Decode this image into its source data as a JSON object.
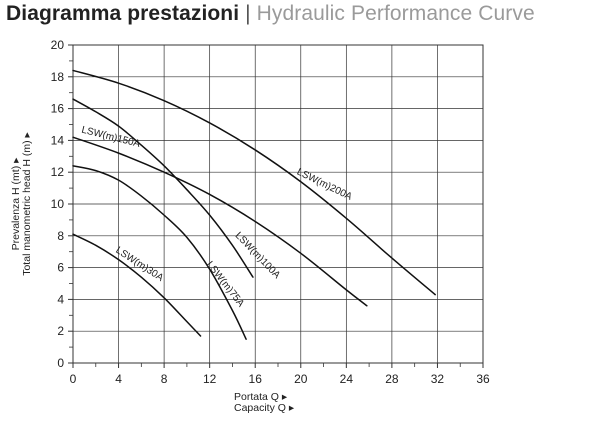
{
  "header": {
    "title_main": "Diagramma prestazioni",
    "title_separator": " | ",
    "title_sub": "Hydraulic Performance Curve"
  },
  "chart_data": {
    "type": "line",
    "title": "Diagramma prestazioni | Hydraulic Performance Curve",
    "xlabel_lines": [
      "Portata Q ▸",
      "Capacity Q ▸"
    ],
    "ylabel_lines": [
      "Prevalenza H (mt) ▸",
      "Total manometric head H (m) ▸"
    ],
    "xlim": [
      0,
      36
    ],
    "ylim": [
      0,
      20
    ],
    "x_ticks": [
      0,
      4,
      8,
      12,
      16,
      20,
      24,
      28,
      32,
      36
    ],
    "y_ticks": [
      0,
      2,
      4,
      6,
      8,
      10,
      12,
      14,
      16,
      18,
      20
    ],
    "grid": true,
    "line_color": "#111111",
    "grid_color": "#333333",
    "series": [
      {
        "name": "LSW(m)30A",
        "x": [
          0,
          2,
          4,
          6,
          8,
          10,
          11.2
        ],
        "y": [
          8.1,
          7.4,
          6.5,
          5.4,
          4.1,
          2.6,
          1.7
        ]
      },
      {
        "name": "LSW(m)75A",
        "x": [
          0,
          2,
          4,
          6,
          8,
          10,
          12,
          14,
          15.2
        ],
        "y": [
          12.4,
          12.1,
          11.5,
          10.5,
          9.3,
          7.9,
          5.9,
          3.3,
          1.5
        ]
      },
      {
        "name": "LSW(m)100A",
        "x": [
          0,
          2,
          4,
          6,
          8,
          10,
          12,
          14,
          15.8
        ],
        "y": [
          16.6,
          15.8,
          14.9,
          13.7,
          12.4,
          10.9,
          9.3,
          7.4,
          5.4
        ]
      },
      {
        "name": "LSW(m)150A",
        "x": [
          0,
          4,
          8,
          12,
          16,
          20,
          24,
          25.8
        ],
        "y": [
          14.2,
          13.2,
          12.0,
          10.6,
          8.9,
          6.9,
          4.6,
          3.6
        ]
      },
      {
        "name": "LSW(m)200A",
        "x": [
          0,
          4,
          8,
          12,
          16,
          20,
          24,
          28,
          31.8
        ],
        "y": [
          18.4,
          17.6,
          16.5,
          15.1,
          13.4,
          11.4,
          9.1,
          6.6,
          4.3
        ]
      }
    ],
    "curve_labels": [
      {
        "series": "LSW(m)150A",
        "text": "LSW(m)150A",
        "x": 0.7,
        "y": 14.5,
        "angle": 14
      },
      {
        "series": "LSW(m)200A",
        "text": "LSW(m)200A",
        "x": 19.6,
        "y": 11.9,
        "angle": 26
      },
      {
        "series": "LSW(m)100A",
        "text": "LSW(m)100A",
        "x": 14.2,
        "y": 8.0,
        "angle": 46
      },
      {
        "series": "LSW(m)75A",
        "text": "LSW(m)75A",
        "x": 11.7,
        "y": 6.2,
        "angle": 52
      },
      {
        "series": "LSW(m)30A",
        "text": "LSW(m)30A",
        "x": 3.7,
        "y": 7.0,
        "angle": 33
      }
    ]
  }
}
